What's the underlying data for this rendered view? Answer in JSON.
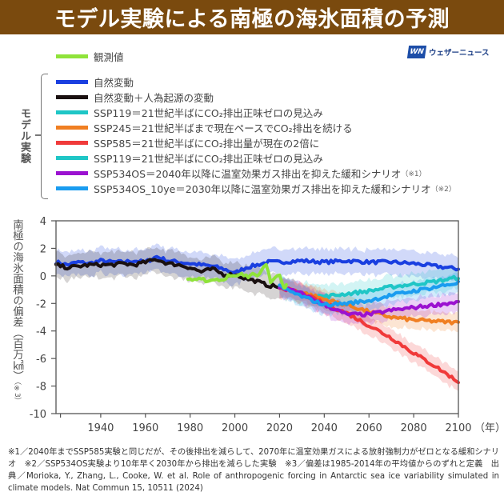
{
  "title": "モデル実験による南極の海氷面積の予測",
  "brand": {
    "logo_text": "WN",
    "name": "ウェザーニュース"
  },
  "legend": {
    "group_label": "モデル実験",
    "observed": {
      "label": "観測値",
      "color": "#8fe33a"
    },
    "items": [
      {
        "label": "自然変動",
        "note": "",
        "color": "#1a3fe0"
      },
      {
        "label": "自然変動＋人為起源の変動",
        "note": "",
        "color": "#1a1010"
      },
      {
        "label": "SSP119＝21世紀半ばにCO₂排出正味ゼロの見込み",
        "note": "",
        "color": "#1fc6c6"
      },
      {
        "label": "SSP245＝21世紀半ばまで現在ペースでCO₂排出を続ける",
        "note": "",
        "color": "#f07f22"
      },
      {
        "label": "SSP585＝21世紀半ばにCO₂排出量が現在の2倍に",
        "note": "",
        "color": "#f03a3a"
      },
      {
        "label": "SSP119＝21世紀半ばにCO₂排出正味ゼロの見込み",
        "note": "",
        "color": "#1fc6c6"
      },
      {
        "label": "SSP534OS＝2040年以降に温室効果ガス排出を抑えた緩和シナリオ",
        "note": "（※1）",
        "color": "#9b12d0"
      },
      {
        "label": "SSP534OS_10ye＝2030年以降に温室効果ガス排出を抑えた緩和シナリオ",
        "note": "（※2）",
        "color": "#1a9cf0"
      }
    ]
  },
  "footnote": "※1／2040年までSSP585実験と同じだが、その後排出を減らして、2070年に温室効果ガスによる放射強制力がゼロとなる緩和シナリオ　※2／SSP534OS実験より10年早く2030年から排出を減らした実験　※3／偏差は1985-2014年の平均値からのずれと定義　出典／Morioka, Y., Zhang, L., Cooke, W. et al. Role of anthropogenic forcing in Antarctic sea ice variability simulated in climate models. Nat Commun 15, 10511 (2024)",
  "chart_data": {
    "type": "line",
    "title": "モデル実験による南極の海氷面積の予測",
    "xlabel": "（年）",
    "ylabel": "南極の海氷面積の偏差（百万㎢）",
    "ylabel_note": "（※3）",
    "xlim": [
      1920,
      2100
    ],
    "ylim": [
      -10,
      4
    ],
    "xticks": [
      1940,
      1960,
      1980,
      2000,
      2020,
      2040,
      2060,
      2080,
      2100
    ],
    "yticks": [
      4,
      2,
      0,
      -2,
      -4,
      -6,
      -8,
      -10
    ],
    "grid": false,
    "legend_position": "top",
    "series": [
      {
        "name": "自然変動",
        "color": "#1a3fe0",
        "band": 0.9,
        "x": [
          1920,
          1925,
          1930,
          1935,
          1940,
          1945,
          1950,
          1955,
          1960,
          1965,
          1970,
          1975,
          1980,
          1985,
          1990,
          1995,
          2000,
          2005,
          2010,
          2015,
          2020,
          2030,
          2040,
          2050,
          2060,
          2070,
          2080,
          2090,
          2100
        ],
        "y": [
          1.0,
          0.8,
          1.0,
          0.9,
          1.1,
          1.0,
          1.0,
          1.1,
          1.0,
          1.4,
          1.1,
          1.0,
          0.9,
          0.8,
          0.7,
          0.5,
          0.2,
          0.6,
          0.8,
          1.0,
          1.0,
          1.1,
          1.0,
          1.1,
          1.0,
          1.0,
          0.9,
          0.7,
          0.5
        ]
      },
      {
        "name": "自然変動＋人為起源の変動",
        "color": "#1a1010",
        "band": 0.9,
        "x": [
          1920,
          1925,
          1930,
          1935,
          1940,
          1945,
          1950,
          1955,
          1960,
          1965,
          1970,
          1975,
          1980,
          1985,
          1990,
          1995,
          2000,
          2005,
          2010,
          2015,
          2020
        ],
        "y": [
          0.8,
          0.6,
          0.7,
          0.8,
          0.8,
          0.8,
          0.9,
          0.8,
          1.0,
          1.2,
          0.9,
          0.8,
          0.6,
          0.3,
          0.5,
          0.1,
          0.1,
          -0.2,
          -0.4,
          -0.7,
          -0.8
        ]
      },
      {
        "name": "観測値",
        "color": "#8fe33a",
        "band": 0,
        "x": [
          1979,
          1982,
          1985,
          1988,
          1991,
          1994,
          1997,
          2000,
          2003,
          2006,
          2008,
          2010,
          2012,
          2014,
          2015,
          2016,
          2018,
          2020,
          2022,
          2023
        ],
        "y": [
          -0.3,
          -0.3,
          -0.1,
          -0.4,
          -0.2,
          -0.3,
          0.0,
          -0.1,
          0.1,
          -0.1,
          0.3,
          0.1,
          0.4,
          0.9,
          0.4,
          -0.6,
          -0.2,
          0.0,
          -0.9,
          -0.6
        ]
      },
      {
        "name": "SSP119",
        "color": "#1fc6c6",
        "band": 0.8,
        "x": [
          2020,
          2030,
          2040,
          2050,
          2060,
          2070,
          2080,
          2090,
          2100
        ],
        "y": [
          -0.8,
          -1.3,
          -1.5,
          -1.3,
          -1.1,
          -0.8,
          -0.6,
          -0.4,
          -0.1
        ]
      },
      {
        "name": "SSP245",
        "color": "#f07f22",
        "band": 0.7,
        "x": [
          2020,
          2030,
          2040,
          2050,
          2060,
          2070,
          2080,
          2090,
          2100
        ],
        "y": [
          -0.8,
          -1.2,
          -1.7,
          -2.1,
          -2.6,
          -3.0,
          -3.2,
          -3.3,
          -3.4
        ]
      },
      {
        "name": "SSP585",
        "color": "#f03a3a",
        "band": 0.7,
        "x": [
          2020,
          2030,
          2040,
          2050,
          2060,
          2070,
          2080,
          2090,
          2100
        ],
        "y": [
          -0.8,
          -1.3,
          -2.0,
          -2.7,
          -3.6,
          -4.5,
          -5.6,
          -6.6,
          -7.7
        ]
      },
      {
        "name": "SSP534OS",
        "color": "#9b12d0",
        "band": 0.7,
        "x": [
          2020,
          2030,
          2040,
          2050,
          2060,
          2070,
          2080,
          2090,
          2100
        ],
        "y": [
          -0.8,
          -1.3,
          -2.1,
          -2.8,
          -2.8,
          -2.5,
          -2.3,
          -2.1,
          -1.9
        ]
      },
      {
        "name": "SSP534OS_10ye",
        "color": "#1a9cf0",
        "band": 0.7,
        "x": [
          2020,
          2030,
          2040,
          2050,
          2060,
          2070,
          2080,
          2090,
          2100
        ],
        "y": [
          -0.8,
          -1.5,
          -2.1,
          -2.0,
          -1.8,
          -1.4,
          -1.1,
          -0.8,
          -0.5
        ]
      }
    ]
  }
}
